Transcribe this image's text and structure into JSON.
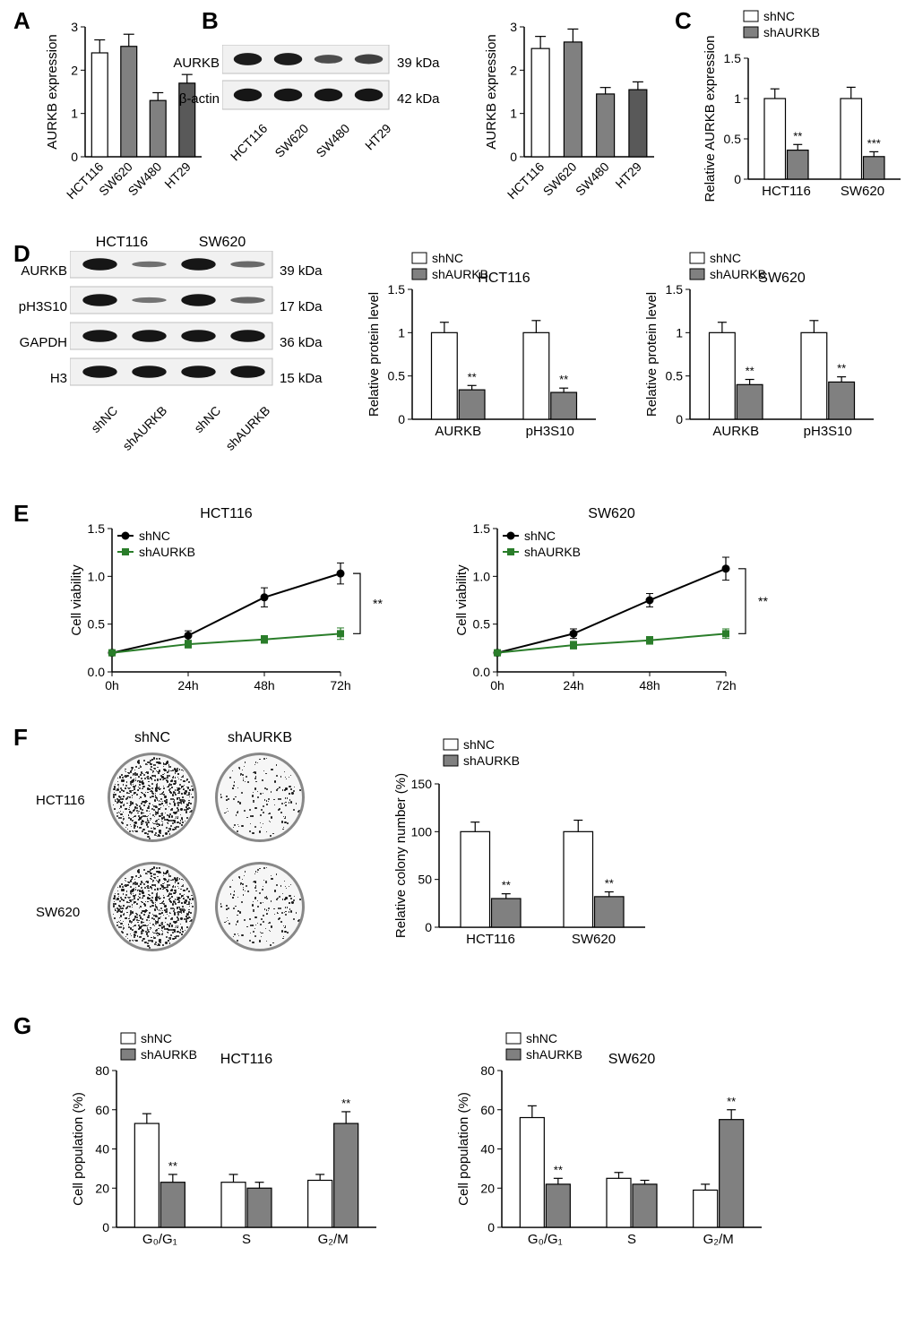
{
  "labels": {
    "A": "A",
    "B": "B",
    "C": "C",
    "D": "D",
    "E": "E",
    "F": "F",
    "G": "G"
  },
  "colors": {
    "white": "#ffffff",
    "gray": "#808080",
    "darkgray": "#595959",
    "black": "#000000",
    "axis": "#000000",
    "green": "#2a7d2a",
    "bar_stroke": "#000000"
  },
  "panelA": {
    "ylabel": "AURKB expression",
    "ylim": [
      0,
      3
    ],
    "ytick_step": 1,
    "categories": [
      "HCT116",
      "SW620",
      "SW480",
      "HT29"
    ],
    "values": [
      2.4,
      2.55,
      1.3,
      1.7
    ],
    "errors": [
      0.3,
      0.28,
      0.18,
      0.2
    ],
    "fills": [
      "#ffffff",
      "#808080",
      "#808080",
      "#595959"
    ]
  },
  "panelB": {
    "blot": {
      "rows": [
        {
          "name": "AURKB",
          "sizes": [
            0.95,
            0.95,
            0.6,
            0.7
          ],
          "kda": "39 kDa"
        },
        {
          "name": "β-actin",
          "sizes": [
            1,
            1,
            1,
            1
          ],
          "kda": "42 kDa"
        }
      ],
      "lanes": [
        "HCT116",
        "SW620",
        "SW480",
        "HT29"
      ]
    },
    "chart": {
      "ylabel": "AURKB expression",
      "ylim": [
        0,
        3
      ],
      "ytick_step": 1,
      "categories": [
        "HCT116",
        "SW620",
        "SW480",
        "HT29"
      ],
      "values": [
        2.5,
        2.65,
        1.45,
        1.55
      ],
      "errors": [
        0.28,
        0.3,
        0.15,
        0.18
      ],
      "fills": [
        "#ffffff",
        "#808080",
        "#808080",
        "#595959"
      ]
    }
  },
  "panelC": {
    "ylabel": "Relative AURKB expression",
    "ylim": [
      0,
      1.5
    ],
    "ytick_step": 0.5,
    "groups": [
      "HCT116",
      "SW620"
    ],
    "series": [
      {
        "name": "shNC",
        "fill": "#ffffff"
      },
      {
        "name": "shAURKB",
        "fill": "#808080"
      }
    ],
    "values": [
      [
        1.0,
        0.36
      ],
      [
        1.0,
        0.28
      ]
    ],
    "errors": [
      [
        0.12,
        0.07
      ],
      [
        0.14,
        0.06
      ]
    ],
    "sig": [
      "**",
      "***"
    ]
  },
  "panelD": {
    "blot": {
      "groups": [
        "HCT116",
        "SW620"
      ],
      "rows": [
        {
          "name": "AURKB",
          "kda": "39 kDa",
          "intensities": [
            1,
            0.35,
            1,
            0.4
          ]
        },
        {
          "name": "pH3S10",
          "kda": "17 kDa",
          "intensities": [
            1,
            0.32,
            1,
            0.42
          ]
        },
        {
          "name": "GAPDH",
          "kda": "36 kDa",
          "intensities": [
            1,
            1,
            1,
            1
          ]
        },
        {
          "name": "H3",
          "kda": "15 kDa",
          "intensities": [
            1,
            1,
            1,
            1
          ]
        }
      ],
      "lanes": [
        "shNC",
        "shAURKB",
        "shNC",
        "shAURKB"
      ]
    },
    "charts": [
      {
        "title": "HCT116",
        "ylabel": "Relative protein level",
        "ylim": [
          0,
          1.5
        ],
        "ytick_step": 0.5,
        "groups": [
          "AURKB",
          "pH3S10"
        ],
        "series": [
          {
            "name": "shNC",
            "fill": "#ffffff"
          },
          {
            "name": "shAURKB",
            "fill": "#808080"
          }
        ],
        "values": [
          [
            1.0,
            0.34
          ],
          [
            1.0,
            0.31
          ]
        ],
        "errors": [
          [
            0.12,
            0.05
          ],
          [
            0.14,
            0.05
          ]
        ],
        "sig": [
          "**",
          "**"
        ]
      },
      {
        "title": "SW620",
        "ylabel": "Relative protein level",
        "ylim": [
          0,
          1.5
        ],
        "ytick_step": 0.5,
        "groups": [
          "AURKB",
          "pH3S10"
        ],
        "series": [
          {
            "name": "shNC",
            "fill": "#ffffff"
          },
          {
            "name": "shAURKB",
            "fill": "#808080"
          }
        ],
        "values": [
          [
            1.0,
            0.4
          ],
          [
            1.0,
            0.43
          ]
        ],
        "errors": [
          [
            0.12,
            0.06
          ],
          [
            0.14,
            0.06
          ]
        ],
        "sig": [
          "**",
          "**"
        ]
      }
    ]
  },
  "panelE": {
    "charts": [
      {
        "title": "HCT116",
        "ylabel": "Cell viability",
        "ylim": [
          0,
          1.5
        ],
        "ytick_step": 0.5,
        "x": [
          "0h",
          "24h",
          "48h",
          "72h"
        ],
        "series": [
          {
            "name": "shNC",
            "color": "#000000",
            "marker": "circle",
            "values": [
              0.2,
              0.38,
              0.78,
              1.03
            ],
            "errors": [
              0.02,
              0.05,
              0.1,
              0.11
            ]
          },
          {
            "name": "shAURKB",
            "color": "#2a7d2a",
            "marker": "square",
            "values": [
              0.2,
              0.29,
              0.34,
              0.4
            ],
            "errors": [
              0.02,
              0.04,
              0.04,
              0.06
            ]
          }
        ],
        "sig": "**"
      },
      {
        "title": "SW620",
        "ylabel": "Cell viability",
        "ylim": [
          0,
          1.5
        ],
        "ytick_step": 0.5,
        "x": [
          "0h",
          "24h",
          "48h",
          "72h"
        ],
        "series": [
          {
            "name": "shNC",
            "color": "#000000",
            "marker": "circle",
            "values": [
              0.2,
              0.4,
              0.75,
              1.08
            ],
            "errors": [
              0.02,
              0.05,
              0.07,
              0.12
            ]
          },
          {
            "name": "shAURKB",
            "color": "#2a7d2a",
            "marker": "square",
            "values": [
              0.2,
              0.28,
              0.33,
              0.4
            ],
            "errors": [
              0.02,
              0.04,
              0.04,
              0.05
            ]
          }
        ],
        "sig": "**"
      }
    ]
  },
  "panelF": {
    "plates": {
      "cols": [
        "shNC",
        "shAURKB"
      ],
      "rows": [
        "HCT116",
        "SW620"
      ],
      "densities": [
        [
          1.0,
          0.22
        ],
        [
          1.0,
          0.25
        ]
      ]
    },
    "chart": {
      "ylabel": "Relative colony number (%)",
      "ylim": [
        0,
        150
      ],
      "ytick_step": 50,
      "groups": [
        "HCT116",
        "SW620"
      ],
      "series": [
        {
          "name": "shNC",
          "fill": "#ffffff"
        },
        {
          "name": "shAURKB",
          "fill": "#808080"
        }
      ],
      "values": [
        [
          100,
          30
        ],
        [
          100,
          32
        ]
      ],
      "errors": [
        [
          10,
          5
        ],
        [
          12,
          5
        ]
      ],
      "sig": [
        "**",
        "**"
      ]
    }
  },
  "panelG": {
    "charts": [
      {
        "title": "HCT116",
        "ylabel": "Cell population (%)",
        "ylim": [
          0,
          80
        ],
        "ytick_step": 20,
        "groups": [
          "G₀/G₁",
          "S",
          "G₂/M"
        ],
        "series": [
          {
            "name": "shNC",
            "fill": "#ffffff"
          },
          {
            "name": "shAURKB",
            "fill": "#808080"
          }
        ],
        "values": [
          [
            53,
            23
          ],
          [
            23,
            20
          ],
          [
            24,
            53
          ]
        ],
        "errors": [
          [
            5,
            4
          ],
          [
            4,
            3
          ],
          [
            3,
            6
          ]
        ],
        "sig": [
          "**",
          "",
          "**"
        ]
      },
      {
        "title": "SW620",
        "ylabel": "Cell population (%)",
        "ylim": [
          0,
          80
        ],
        "ytick_step": 20,
        "groups": [
          "G₀/G₁",
          "S",
          "G₂/M"
        ],
        "series": [
          {
            "name": "shNC",
            "fill": "#ffffff"
          },
          {
            "name": "shAURKB",
            "fill": "#808080"
          }
        ],
        "values": [
          [
            56,
            22
          ],
          [
            25,
            22
          ],
          [
            19,
            55
          ]
        ],
        "errors": [
          [
            6,
            3
          ],
          [
            3,
            2
          ],
          [
            3,
            5
          ]
        ],
        "sig": [
          "**",
          "",
          "**"
        ]
      }
    ]
  }
}
